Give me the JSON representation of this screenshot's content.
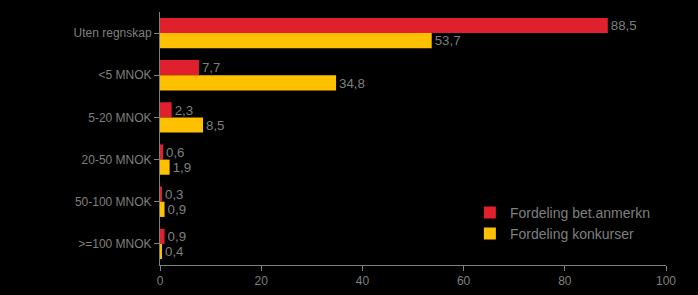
{
  "chart_data": {
    "type": "bar",
    "orientation": "horizontal",
    "categories": [
      "Uten regnskap",
      "<5 MNOK",
      "5-20 MNOK",
      "20-50 MNOK",
      "50-100 MNOK",
      ">=100 MNOK"
    ],
    "series": [
      {
        "name": "Fordeling bet.anmerkn",
        "color": "#e0202c",
        "values": [
          88.5,
          7.7,
          2.3,
          0.6,
          0.3,
          0.9
        ],
        "value_labels": [
          "88,5",
          "7,7",
          "2,3",
          "0,6",
          "0,3",
          "0,9"
        ]
      },
      {
        "name": "Fordeling konkurser",
        "color": "#ffc000",
        "values": [
          53.7,
          34.8,
          8.5,
          1.9,
          0.9,
          0.4
        ],
        "value_labels": [
          "53,7",
          "34,8",
          "8,5",
          "1,9",
          "0,9",
          "0,4"
        ]
      }
    ],
    "xlim": [
      0,
      100
    ],
    "xticks": [
      0,
      20,
      40,
      60,
      80,
      100
    ],
    "grid": false,
    "legend": "lower right",
    "data_labels": true
  }
}
